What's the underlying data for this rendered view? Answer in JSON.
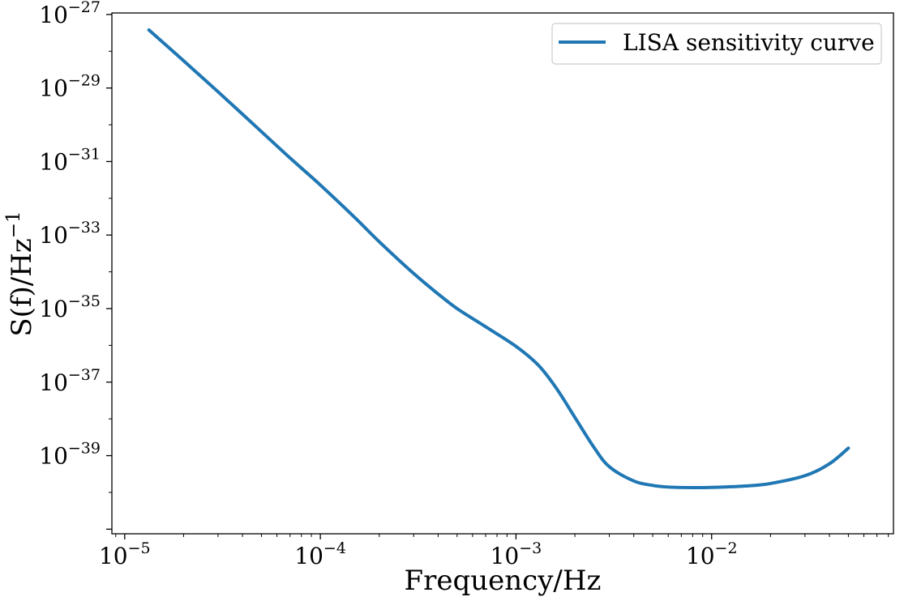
{
  "chart_data": {
    "type": "line",
    "title": "",
    "xlabel": "Frequency/Hz",
    "ylabel": "S(f)/Hz",
    "ylabel_exponent": "−1",
    "xscale": "log",
    "yscale": "log",
    "xlim": [
      8.6e-06,
      0.085
    ],
    "ylim": [
      7.5e-42,
      1.1e-27
    ],
    "grid": false,
    "legend": {
      "position": "top-right"
    },
    "x_ticks": [
      {
        "value": 1e-05,
        "base": "10",
        "exp": "−5"
      },
      {
        "value": 0.0001,
        "base": "10",
        "exp": "−4"
      },
      {
        "value": 0.001,
        "base": "10",
        "exp": "−3"
      },
      {
        "value": 0.01,
        "base": "10",
        "exp": "−2"
      }
    ],
    "y_ticks": [
      {
        "value": 1e-27,
        "base": "10",
        "exp": "−27"
      },
      {
        "value": 1e-29,
        "base": "10",
        "exp": "−29"
      },
      {
        "value": 1e-31,
        "base": "10",
        "exp": "−31"
      },
      {
        "value": 1e-33,
        "base": "10",
        "exp": "−33"
      },
      {
        "value": 1e-35,
        "base": "10",
        "exp": "−35"
      },
      {
        "value": 1e-37,
        "base": "10",
        "exp": "−37"
      },
      {
        "value": 1e-39,
        "base": "10",
        "exp": "−39"
      }
    ],
    "series": [
      {
        "name": "LISA sensitivity curve",
        "color": "#1f77b4",
        "x": [
          1.33e-05,
          2e-05,
          3e-05,
          5e-05,
          7e-05,
          0.0001,
          0.00015,
          0.0002,
          0.0003,
          0.0004,
          0.0005,
          0.0007,
          0.001,
          0.0013,
          0.0016,
          0.002,
          0.0025,
          0.003,
          0.004,
          0.005,
          0.006,
          0.008,
          0.01,
          0.015,
          0.02,
          0.03,
          0.04,
          0.05
        ],
        "y": [
          3.8e-28,
          5.5e-29,
          7.9e-30,
          6.5e-31,
          1.25e-31,
          2.3e-32,
          3e-33,
          6.6e-34,
          9e-35,
          2.5e-35,
          1e-35,
          3.2e-36,
          9.4e-37,
          2.9e-37,
          7.1e-38,
          1.1e-38,
          1.7e-39,
          5e-40,
          2.05e-40,
          1.55e-40,
          1.4e-40,
          1.35e-40,
          1.37e-40,
          1.5e-40,
          1.75e-40,
          2.85e-40,
          6e-40,
          1.6e-39
        ]
      }
    ]
  }
}
